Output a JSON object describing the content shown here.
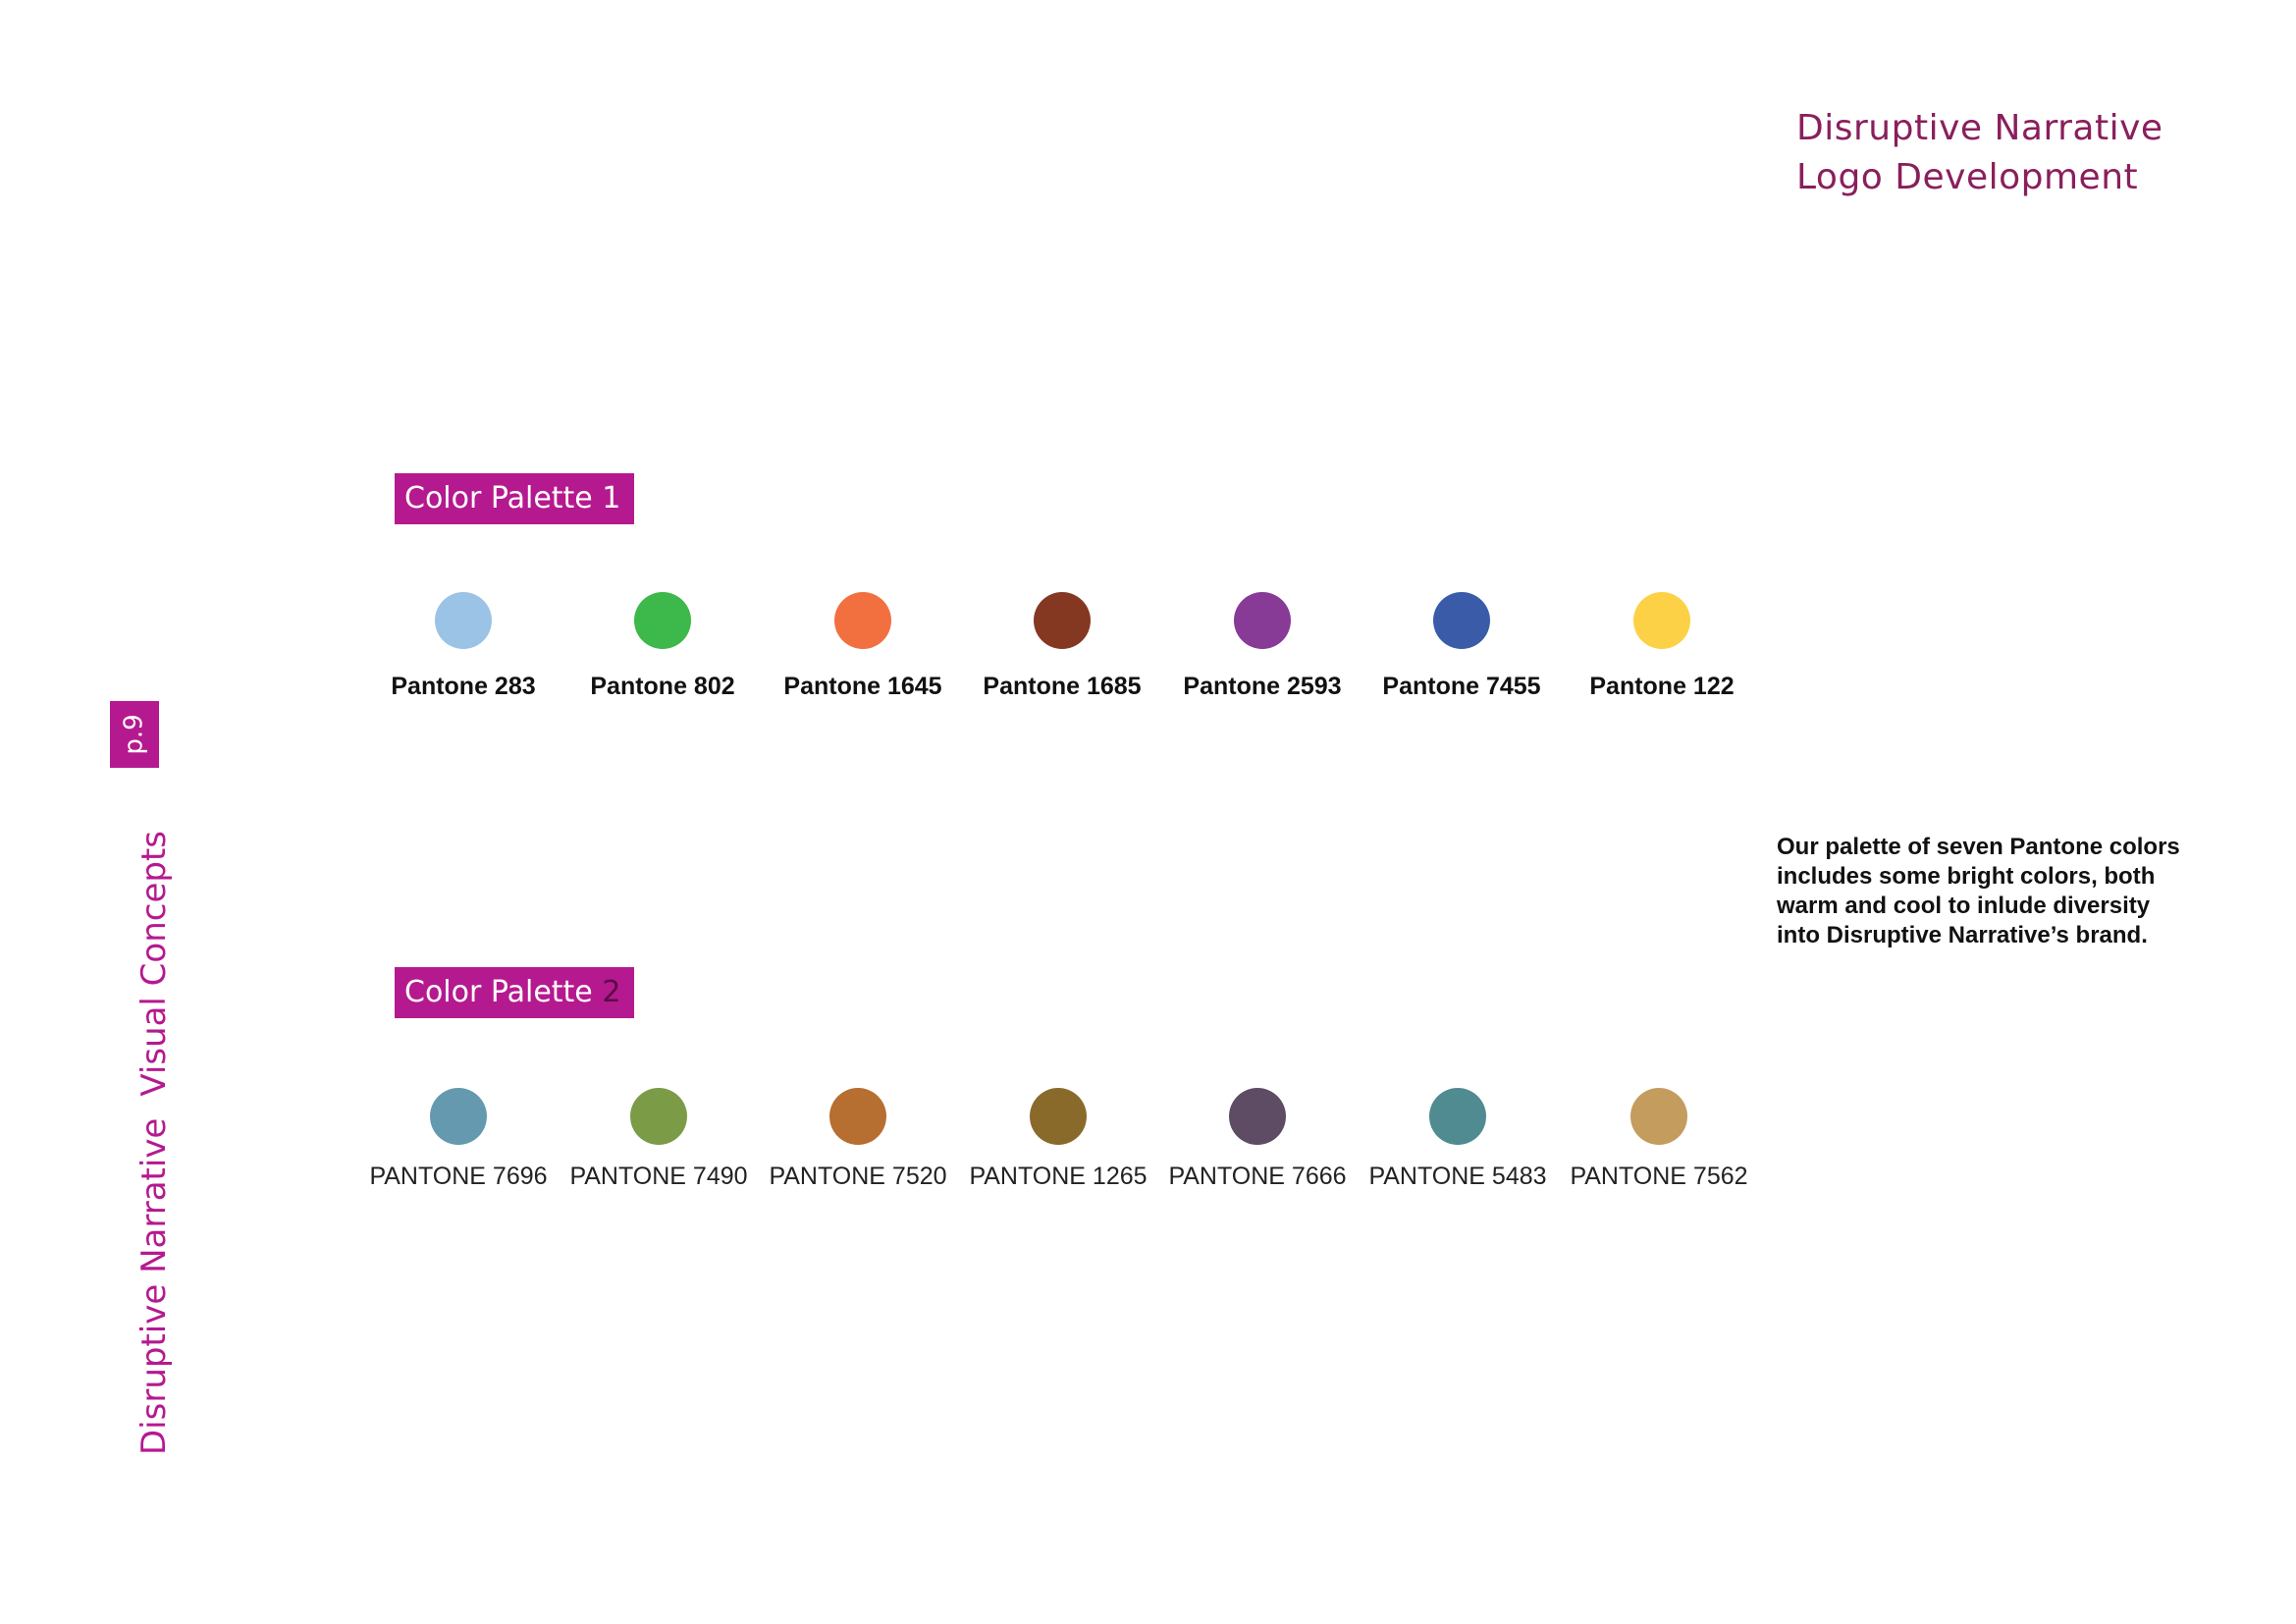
{
  "header": {
    "line1": "Disruptive Narrative",
    "line2": "Logo Development"
  },
  "sidebar": {
    "page": "p.9",
    "title_part1": "Disruptive Narrative",
    "title_part2": "Visual Concepts"
  },
  "palette1": {
    "label": "Color Palette 1",
    "swatches": [
      {
        "name": "Pantone 283",
        "color": "#9bc3e6"
      },
      {
        "name": "Pantone 802",
        "color": "#3db84a"
      },
      {
        "name": "Pantone 1645",
        "color": "#f2703f"
      },
      {
        "name": "Pantone 1685",
        "color": "#853821"
      },
      {
        "name": "Pantone 2593",
        "color": "#873a96"
      },
      {
        "name": "Pantone 7455",
        "color": "#3a5ba8"
      },
      {
        "name": "Pantone 122",
        "color": "#fdd146"
      }
    ]
  },
  "palette2": {
    "label_text": "Color Palette ",
    "label_num": "2",
    "swatches": [
      {
        "name": "PANTONE 7696",
        "color": "#6499af"
      },
      {
        "name": "PANTONE 7490",
        "color": "#7c9b47"
      },
      {
        "name": "PANTONE 7520",
        "color": "#b66e31"
      },
      {
        "name": "PANTONE 1265",
        "color": "#8a6a2b"
      },
      {
        "name": "PANTONE 7666",
        "color": "#5d4c63"
      },
      {
        "name": "PANTONE 5483",
        "color": "#508b91"
      },
      {
        "name": "PANTONE 7562",
        "color": "#c49c5e"
      }
    ]
  },
  "description": "Our palette of seven Pantone colors includes some bright colors, both warm and cool to inlude diversity into Disruptive Narrative’s brand."
}
